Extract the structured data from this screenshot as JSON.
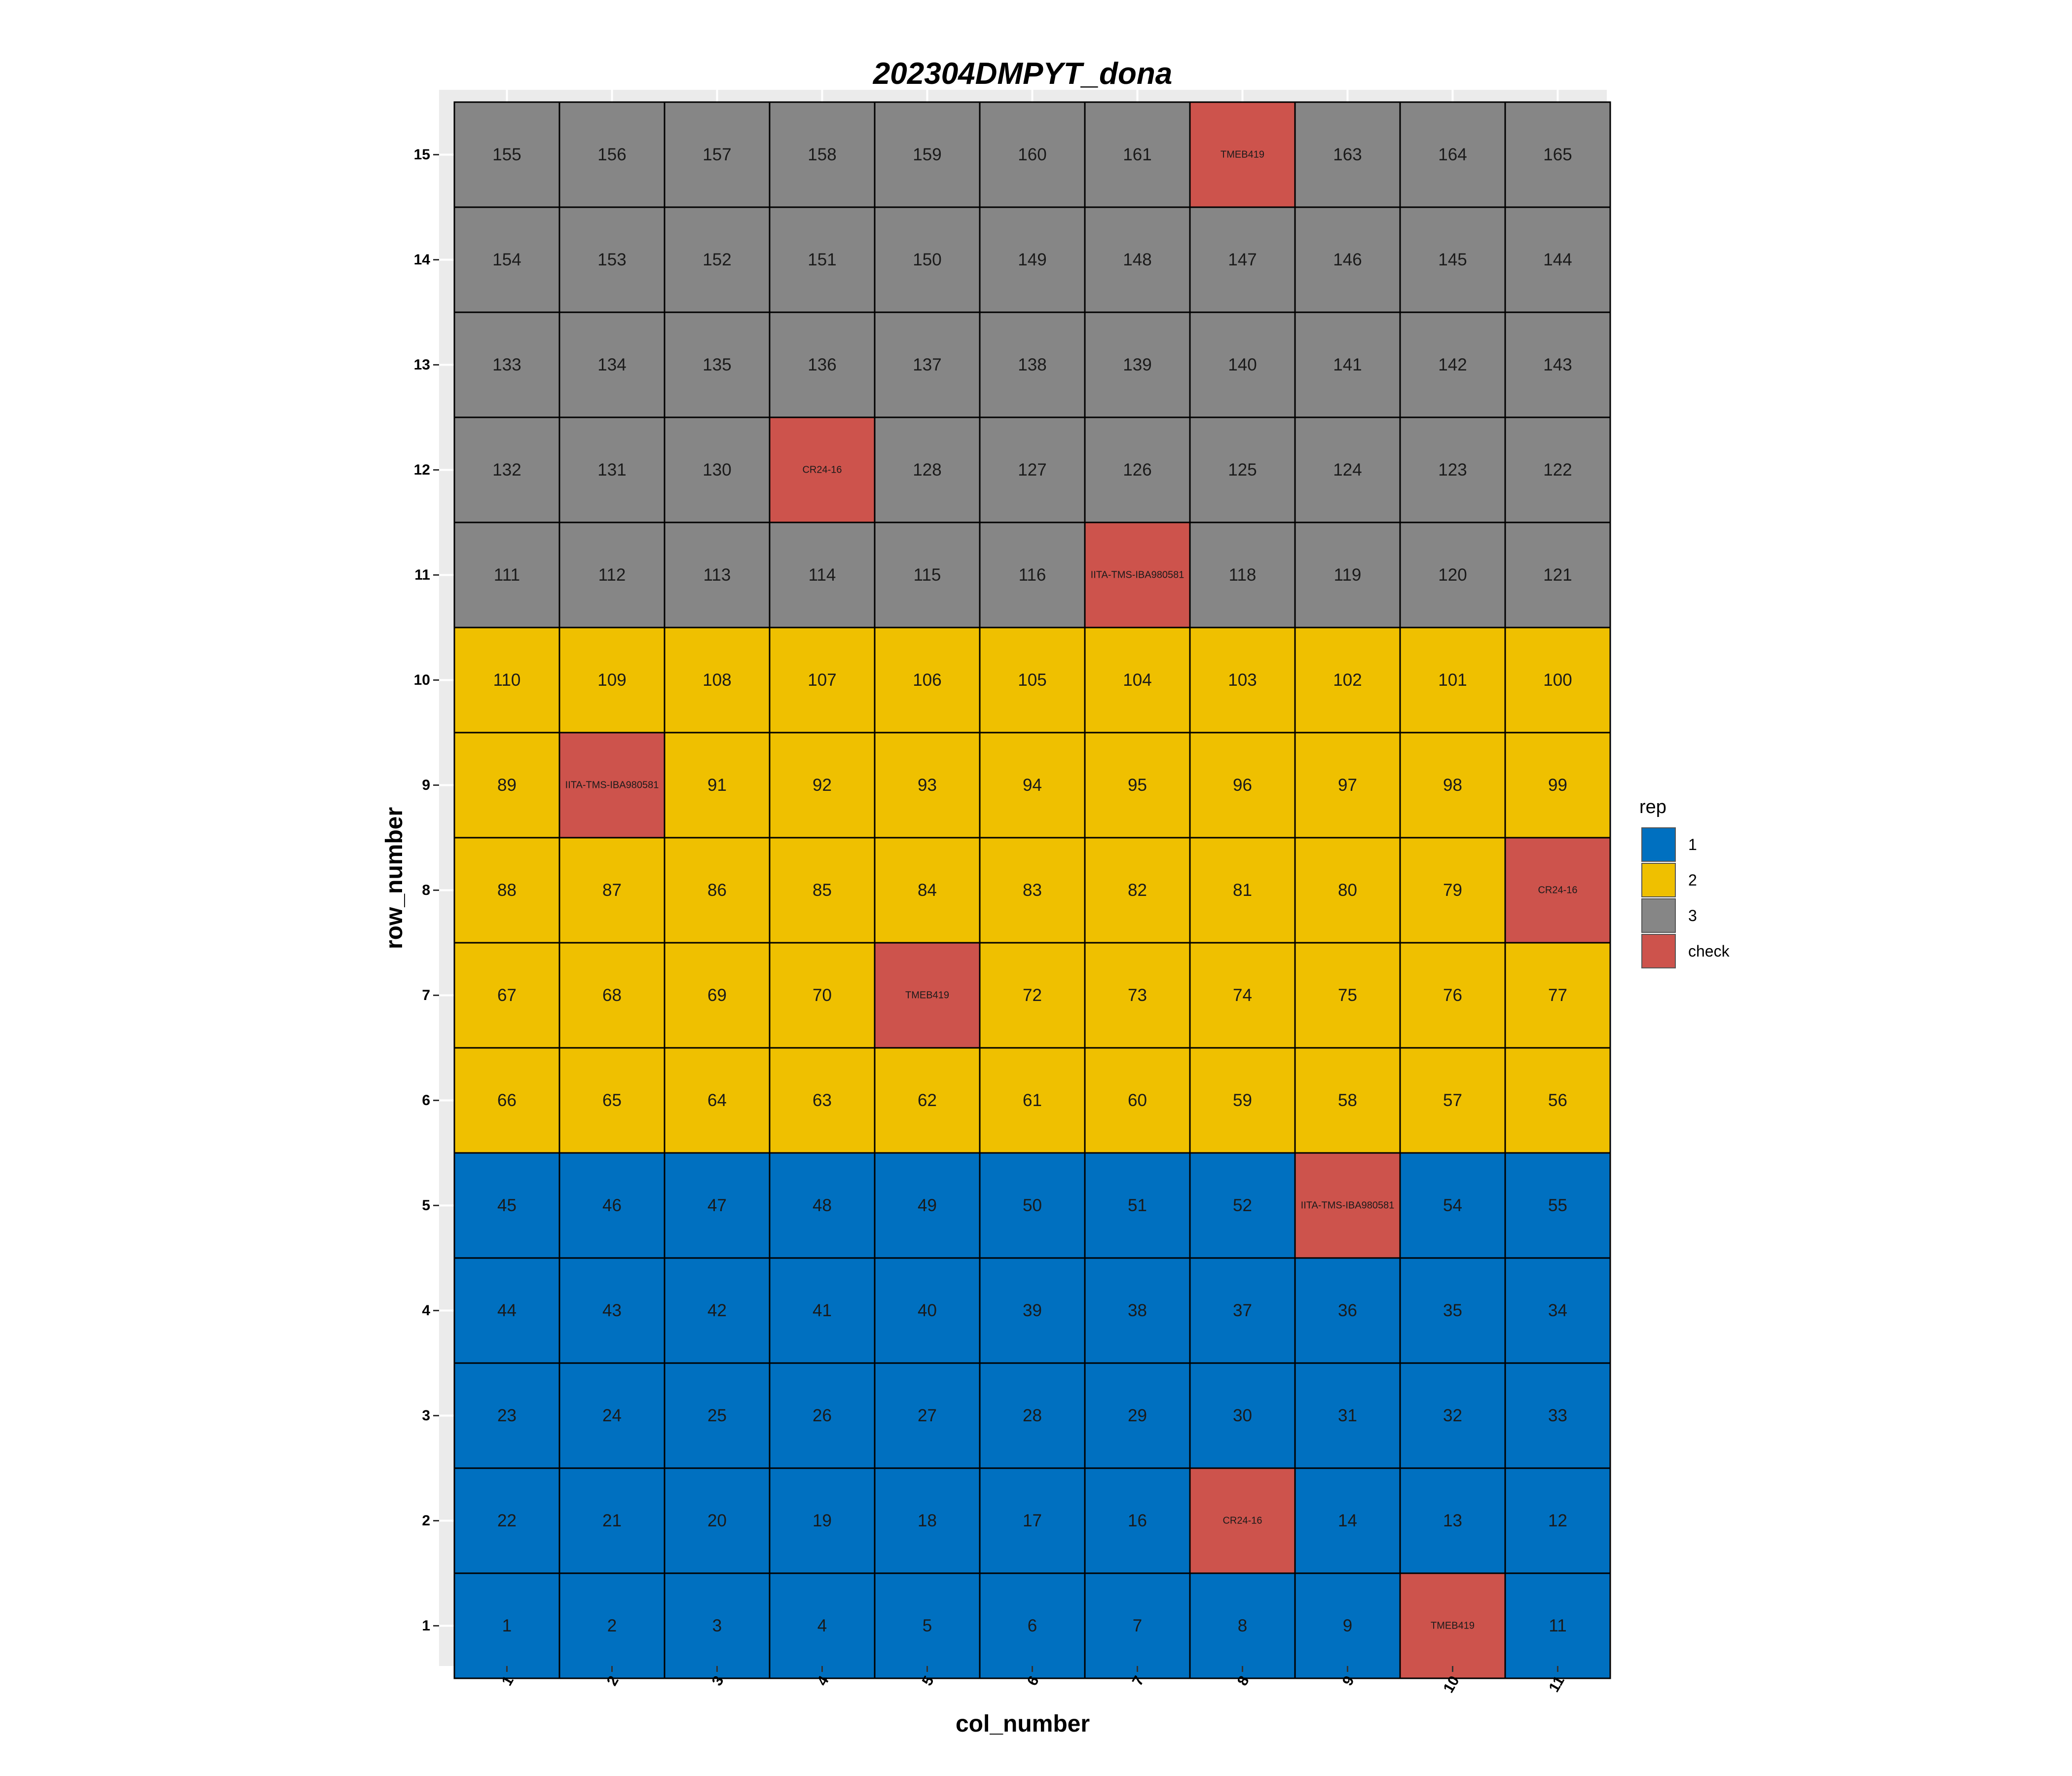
{
  "chart_data": {
    "type": "heatmap",
    "title": "202304DMPYT_dona",
    "xlabel": "col_number",
    "ylabel": "row_number",
    "x_ticks": [
      "1",
      "2",
      "3",
      "4",
      "5",
      "6",
      "7",
      "8",
      "9",
      "10",
      "11"
    ],
    "y_ticks": [
      "1",
      "2",
      "3",
      "4",
      "5",
      "6",
      "7",
      "8",
      "9",
      "10",
      "11",
      "12",
      "13",
      "14",
      "15"
    ],
    "xlim": [
      1,
      11
    ],
    "ylim": [
      1,
      15
    ],
    "legend": {
      "title": "rep",
      "position": "right",
      "items": [
        {
          "label": "1",
          "color": "#0070C0"
        },
        {
          "label": "2",
          "color": "#EFC000"
        },
        {
          "label": "3",
          "color": "#868686"
        },
        {
          "label": "check",
          "color": "#CD534C"
        }
      ]
    },
    "rows": [
      {
        "row": 1,
        "rep": "1",
        "labels": [
          "1",
          "2",
          "3",
          "4",
          "5",
          "6",
          "7",
          "8",
          "9",
          "TMEB419",
          "11"
        ]
      },
      {
        "row": 2,
        "rep": "1",
        "labels": [
          "22",
          "21",
          "20",
          "19",
          "18",
          "17",
          "16",
          "CR24-16",
          "14",
          "13",
          "12"
        ]
      },
      {
        "row": 3,
        "rep": "1",
        "labels": [
          "23",
          "24",
          "25",
          "26",
          "27",
          "28",
          "29",
          "30",
          "31",
          "32",
          "33"
        ]
      },
      {
        "row": 4,
        "rep": "1",
        "labels": [
          "44",
          "43",
          "42",
          "41",
          "40",
          "39",
          "38",
          "37",
          "36",
          "35",
          "34"
        ]
      },
      {
        "row": 5,
        "rep": "1",
        "labels": [
          "45",
          "46",
          "47",
          "48",
          "49",
          "50",
          "51",
          "52",
          "IITA-TMS-IBA980581",
          "54",
          "55"
        ]
      },
      {
        "row": 6,
        "rep": "2",
        "labels": [
          "66",
          "65",
          "64",
          "63",
          "62",
          "61",
          "60",
          "59",
          "58",
          "57",
          "56"
        ]
      },
      {
        "row": 7,
        "rep": "2",
        "labels": [
          "67",
          "68",
          "69",
          "70",
          "TMEB419",
          "72",
          "73",
          "74",
          "75",
          "76",
          "77"
        ]
      },
      {
        "row": 8,
        "rep": "2",
        "labels": [
          "88",
          "87",
          "86",
          "85",
          "84",
          "83",
          "82",
          "81",
          "80",
          "79",
          "CR24-16"
        ]
      },
      {
        "row": 9,
        "rep": "2",
        "labels": [
          "89",
          "IITA-TMS-IBA980581",
          "91",
          "92",
          "93",
          "94",
          "95",
          "96",
          "97",
          "98",
          "99"
        ]
      },
      {
        "row": 10,
        "rep": "2",
        "labels": [
          "110",
          "109",
          "108",
          "107",
          "106",
          "105",
          "104",
          "103",
          "102",
          "101",
          "100"
        ]
      },
      {
        "row": 11,
        "rep": "3",
        "labels": [
          "111",
          "112",
          "113",
          "114",
          "115",
          "116",
          "IITA-TMS-IBA980581",
          "118",
          "119",
          "120",
          "121"
        ]
      },
      {
        "row": 12,
        "rep": "3",
        "labels": [
          "132",
          "131",
          "130",
          "CR24-16",
          "128",
          "127",
          "126",
          "125",
          "124",
          "123",
          "122"
        ]
      },
      {
        "row": 13,
        "rep": "3",
        "labels": [
          "133",
          "134",
          "135",
          "136",
          "137",
          "138",
          "139",
          "140",
          "141",
          "142",
          "143"
        ]
      },
      {
        "row": 14,
        "rep": "3",
        "labels": [
          "154",
          "153",
          "152",
          "151",
          "150",
          "149",
          "148",
          "147",
          "146",
          "145",
          "144"
        ]
      },
      {
        "row": 15,
        "rep": "3",
        "labels": [
          "155",
          "156",
          "157",
          "158",
          "159",
          "160",
          "161",
          "TMEB419",
          "163",
          "164",
          "165"
        ]
      }
    ],
    "check_labels": [
      "TMEB419",
      "CR24-16",
      "IITA-TMS-IBA980581"
    ]
  }
}
